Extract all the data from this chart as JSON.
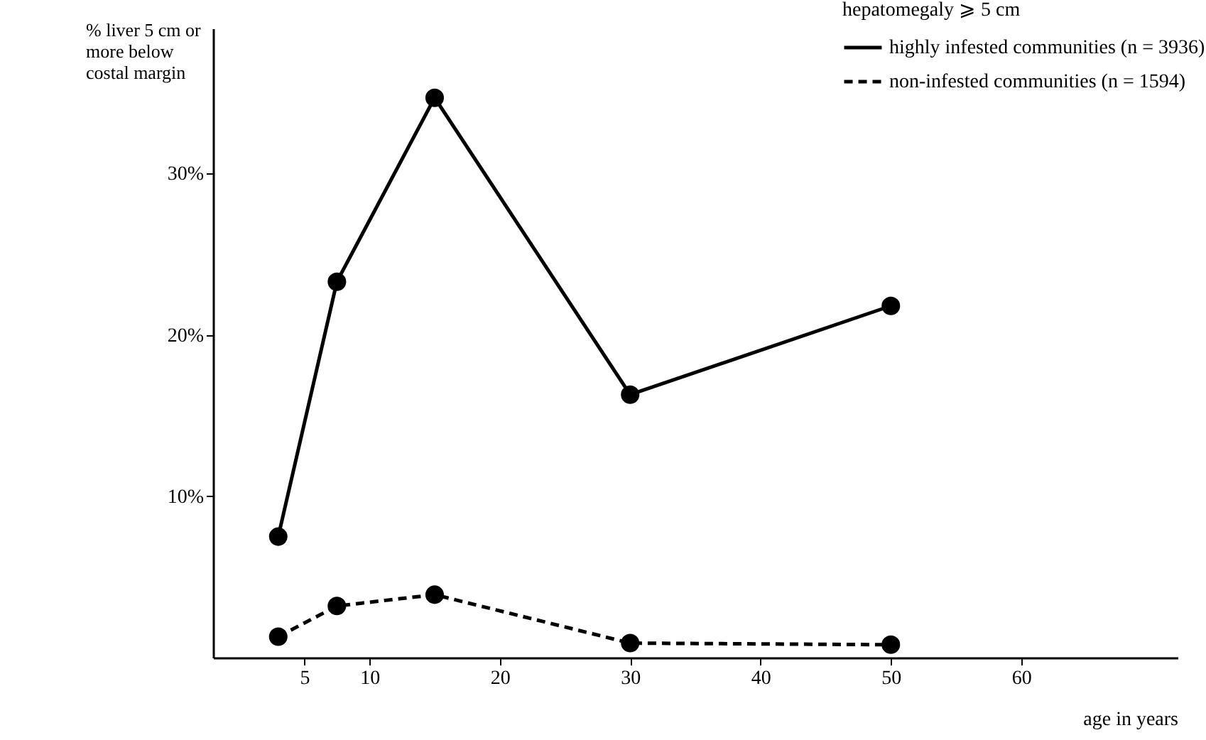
{
  "chart_data": {
    "type": "line",
    "ylabel": "% liver 5 cm or\nmore below\ncostal margin",
    "xlabel": "age in years",
    "legend_title": "hepatomegaly ⩾ 5 cm",
    "x": [
      3,
      7.5,
      15,
      30,
      50
    ],
    "series": [
      {
        "name": "highly infested communities (n = 3936)",
        "color": "#000000",
        "line_style": "solid",
        "values": [
          7.5,
          23.3,
          34.7,
          16.3,
          21.8
        ]
      },
      {
        "name": "non-infested communities (n = 1594)",
        "color": "#000000",
        "line_style": "dashed",
        "values": [
          1.3,
          3.2,
          3.9,
          0.9,
          0.8
        ]
      }
    ],
    "xlim": [
      -2,
      72
    ],
    "xticks": [
      5,
      10,
      20,
      30,
      40,
      50,
      60
    ],
    "ylim": [
      0,
      39
    ],
    "yticks": [
      {
        "value": 10,
        "label": "10%"
      },
      {
        "value": 20,
        "label": "20%"
      },
      {
        "value": 30,
        "label": "30%"
      }
    ],
    "marker": "circle",
    "grid": false,
    "legend": "top right"
  }
}
